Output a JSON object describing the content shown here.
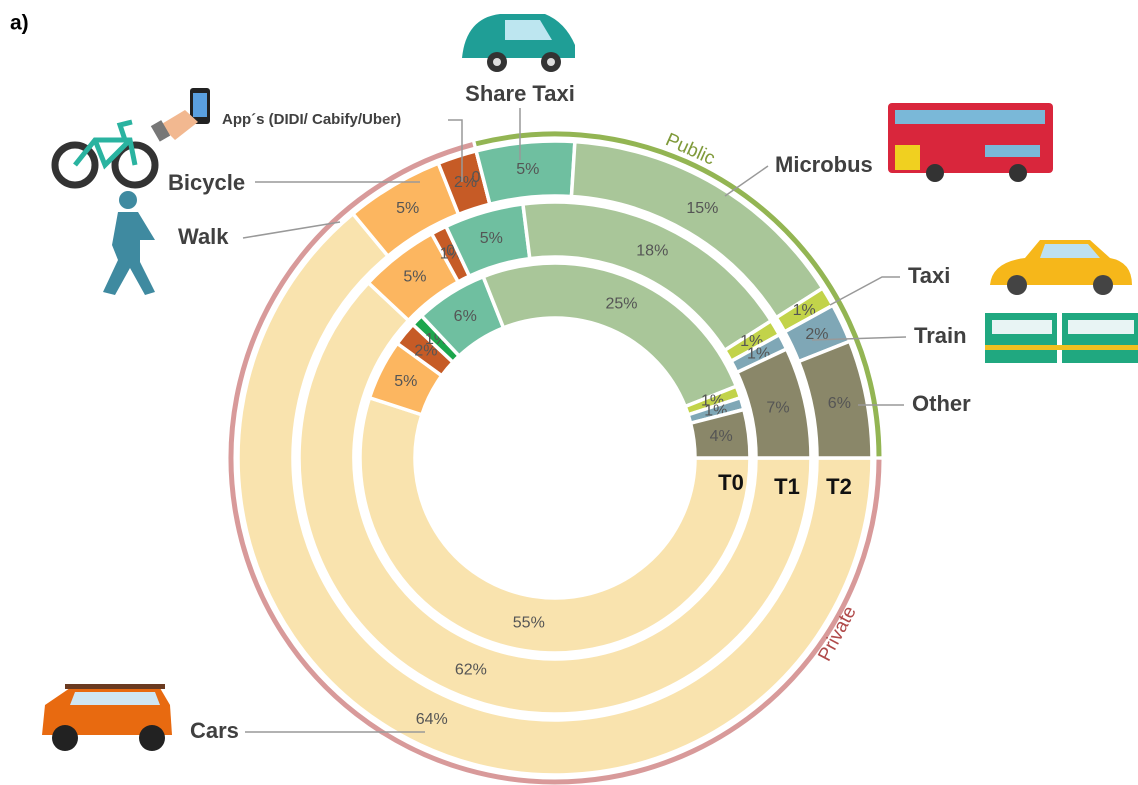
{
  "chart_data": {
    "type": "multi-donut",
    "title": "a)",
    "categories": [
      "Cars",
      "Walk",
      "Bicycle",
      "App´s (DIDI/ Cabify/Uber)",
      "Share Taxi",
      "Microbus",
      "Taxi",
      "Train",
      "Other"
    ],
    "colors": [
      "#f9e3ae",
      "#fcb660",
      "#c65b26",
      "#1ca64c",
      "#6fbfa0",
      "#a9c699",
      "#c2d34a",
      "#7fa7b6",
      "#8a8769"
    ],
    "series": [
      {
        "name": "T0",
        "values": [
          55,
          5,
          2,
          1,
          6,
          25,
          1,
          1,
          4
        ],
        "value_labels": [
          "55%",
          "5%",
          "2%",
          "1%",
          "6%",
          "25%",
          "1%",
          "1%",
          "4%"
        ]
      },
      {
        "name": "T1",
        "values": [
          62,
          5,
          1,
          0,
          5,
          18,
          1,
          1,
          7
        ],
        "value_labels": [
          "62%",
          "5%",
          "1%",
          "0%",
          "5%",
          "18%",
          "1%",
          "1%",
          "7%"
        ]
      },
      {
        "name": "T2",
        "values": [
          64,
          5,
          2,
          0,
          5,
          15,
          1,
          2,
          6
        ],
        "value_labels": [
          "64%",
          "5%",
          "2%",
          "0%",
          "5%",
          "15%",
          "1%",
          "2%",
          "6%"
        ]
      }
    ],
    "groups": [
      {
        "label": "Private",
        "color": "#d89a9a",
        "members": [
          "Cars",
          "Walk",
          "Bicycle",
          "App´s (DIDI/ Cabify/Uber)"
        ]
      },
      {
        "label": "Public",
        "color": "#93b553",
        "members": [
          "Share Taxi",
          "Microbus",
          "Taxi",
          "Train",
          "Other"
        ]
      }
    ]
  }
}
